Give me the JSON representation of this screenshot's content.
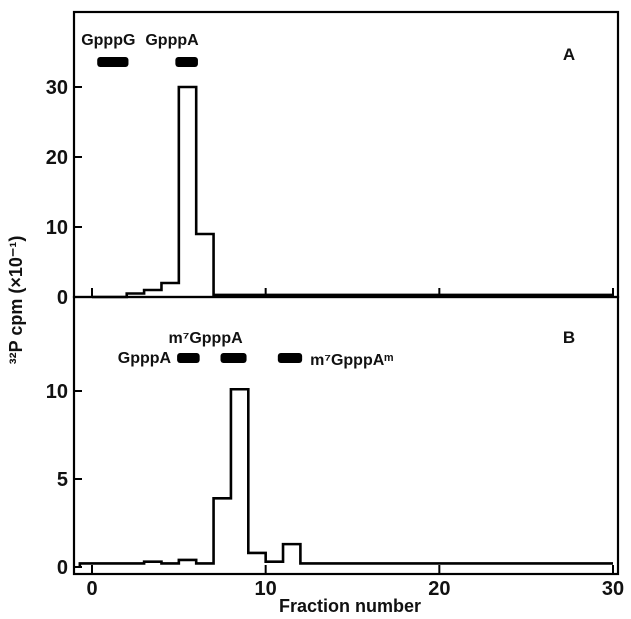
{
  "chart_data": [
    {
      "type": "line",
      "panel_label": "A",
      "title": "",
      "xlabel": "Fraction number",
      "ylabel": "³²P cpm (×10⁻¹)",
      "xlim": [
        -1,
        30
      ],
      "ylim": [
        0,
        40
      ],
      "x_ticks": [
        0,
        10,
        20,
        30
      ],
      "y_ticks": [
        0,
        10,
        20,
        30
      ],
      "step_x": [
        0,
        1,
        2,
        3,
        4,
        5,
        6,
        7,
        8,
        9,
        10,
        11,
        12,
        13,
        14,
        15,
        16,
        17,
        18,
        19,
        20,
        21,
        22,
        23,
        24,
        25,
        26,
        27,
        28,
        29,
        30
      ],
      "step_y": [
        0,
        0,
        0.5,
        1,
        2,
        30,
        9,
        0.3,
        0.3,
        0.3,
        0.3,
        0.3,
        0.3,
        0.3,
        0.3,
        0.3,
        0.3,
        0.3,
        0.3,
        0.3,
        0.3,
        0.3,
        0.3,
        0.3,
        0.3,
        0.3,
        0.3,
        0.3,
        0.3,
        0.3
      ],
      "markers": [
        {
          "label": "GpppG",
          "x_start": 0.3,
          "x_end": 2.1
        },
        {
          "label": "GpppA",
          "x_start": 4.8,
          "x_end": 6.1
        }
      ]
    },
    {
      "type": "line",
      "panel_label": "B",
      "title": "",
      "xlabel": "Fraction number",
      "ylabel": "³²P cpm (×10⁻¹)",
      "xlim": [
        -1,
        30
      ],
      "ylim": [
        0,
        14
      ],
      "x_ticks": [
        0,
        10,
        20,
        30
      ],
      "y_ticks": [
        0,
        5,
        10
      ],
      "step_x": [
        -0.7,
        2,
        3,
        4,
        5,
        6,
        7,
        8,
        9,
        10,
        11,
        12,
        13,
        14,
        15,
        16,
        17,
        18,
        19,
        20,
        21,
        22,
        23,
        24,
        25,
        26,
        27,
        28,
        29,
        30
      ],
      "step_y": [
        0.2,
        0.2,
        0.3,
        0.2,
        0.4,
        0.2,
        3.9,
        10.1,
        0.8,
        0.3,
        1.3,
        0.2,
        0.2,
        0.2,
        0.2,
        0.2,
        0.2,
        0.2,
        0.2,
        0.2,
        0.2,
        0.2,
        0.2,
        0.2,
        0.2,
        0.2,
        0.2,
        0.2,
        0.2
      ],
      "markers": [
        {
          "label": "GpppA",
          "x_start": 4.9,
          "x_end": 6.2
        },
        {
          "label": "m⁷GpppA",
          "x_start": 7.4,
          "x_end": 8.9
        },
        {
          "label": "m⁷GpppAᵐ",
          "x_start": 10.7,
          "x_end": 12.1
        }
      ]
    }
  ]
}
